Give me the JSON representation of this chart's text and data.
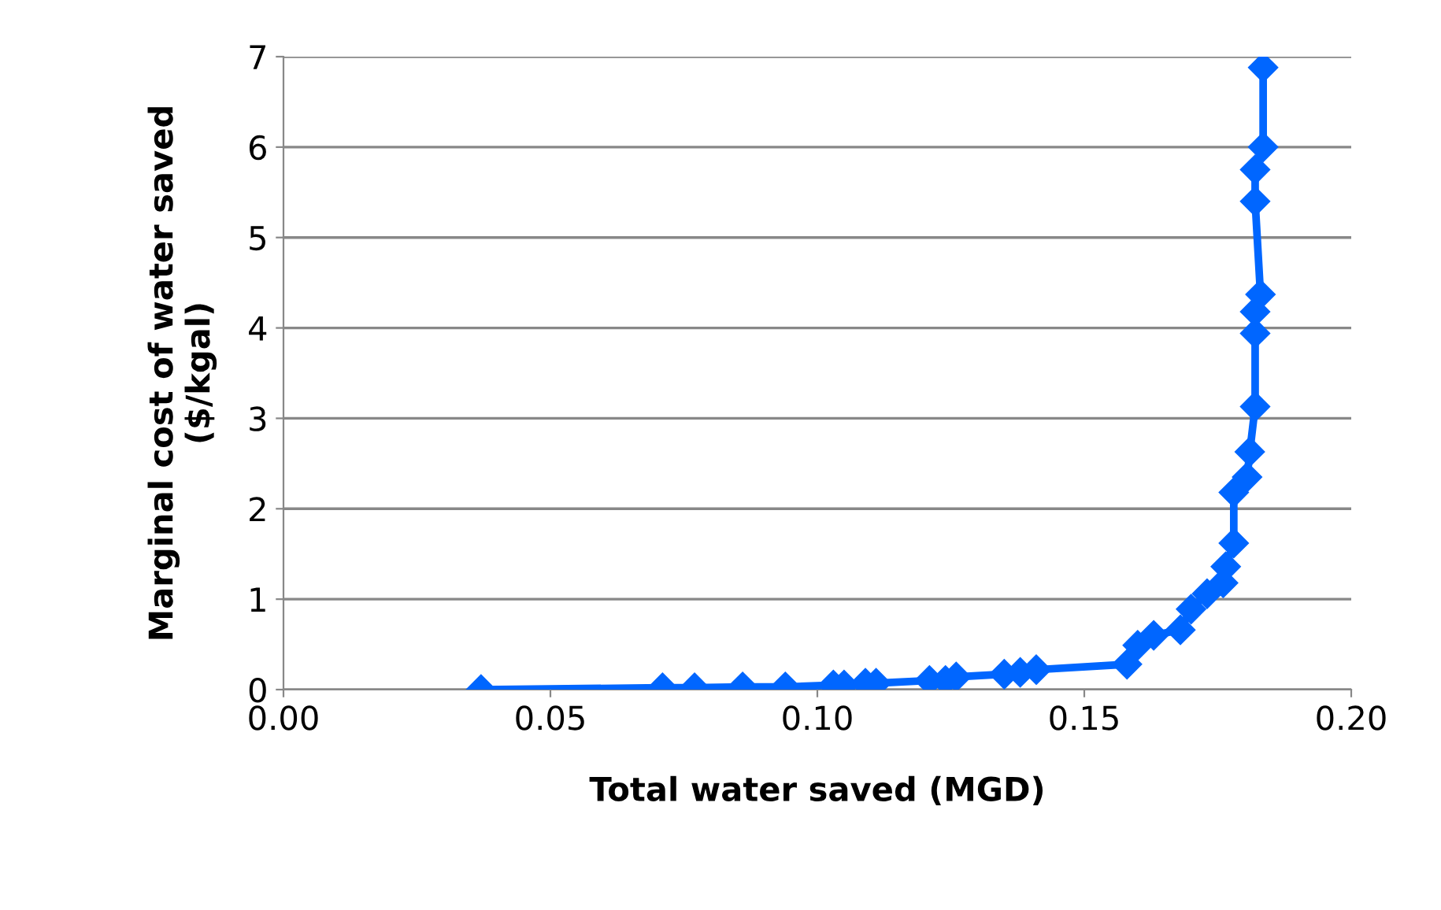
{
  "chart_data": {
    "type": "line",
    "xlabel": "Total water saved (MGD)",
    "ylabel": "Marginal cost of water saved\n($/kgal)",
    "x": [
      0.037,
      0.071,
      0.077,
      0.086,
      0.094,
      0.103,
      0.105,
      0.109,
      0.111,
      0.121,
      0.124,
      0.126,
      0.135,
      0.138,
      0.141,
      0.158,
      0.16,
      0.163,
      0.168,
      0.17,
      0.173,
      0.176,
      0.1765,
      0.178,
      0.178,
      0.1805,
      0.181,
      0.182,
      0.182,
      0.182,
      0.183,
      0.182,
      0.182,
      0.1835,
      0.1835
    ],
    "series": [
      {
        "color": "#0066ff",
        "values": [
          0,
          0.02,
          0.02,
          0.03,
          0.03,
          0.05,
          0.05,
          0.07,
          0.07,
          0.1,
          0.1,
          0.14,
          0.17,
          0.19,
          0.22,
          0.28,
          0.49,
          0.6,
          0.66,
          0.89,
          1.06,
          1.18,
          1.36,
          1.62,
          2.18,
          2.35,
          2.63,
          3.13,
          3.94,
          4.18,
          4.37,
          5.4,
          5.75,
          6.0,
          6.88
        ]
      }
    ],
    "xlim": [
      0,
      0.2
    ],
    "xticks": [
      {
        "value": 0,
        "label": "0.00"
      },
      {
        "value": 0.05,
        "label": "0.05"
      },
      {
        "value": 0.1,
        "label": "0.10"
      },
      {
        "value": 0.15,
        "label": "0.15"
      },
      {
        "value": 0.2,
        "label": "0.20"
      }
    ],
    "ylim": [
      0,
      7
    ],
    "yticks": [
      0,
      1,
      2,
      3,
      4,
      5,
      6,
      7
    ],
    "grid": "y",
    "marker": "diamond",
    "line_style": "solid",
    "legend": false
  }
}
